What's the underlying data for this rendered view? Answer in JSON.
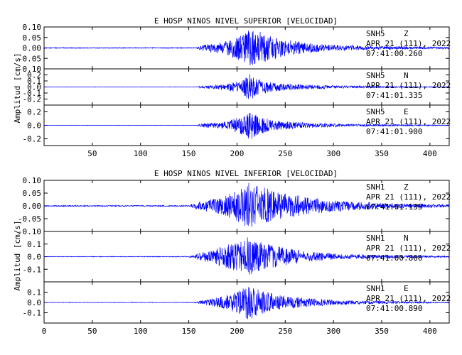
{
  "chart_data": [
    {
      "type": "line",
      "title": "E HOSP NINOS NIVEL SUPERIOR [VELOCIDAD]",
      "ylabel": "Amplitud [cm/s]",
      "xlim": [
        0,
        420
      ],
      "xticks": [
        "50",
        "100",
        "150",
        "200",
        "250",
        "300",
        "350",
        "400"
      ],
      "xtick_values": [
        50,
        100,
        150,
        200,
        250,
        300,
        350,
        400
      ],
      "panels": [
        {
          "station": "SNH5",
          "component": "Z",
          "date": "APR 21 (111), 2022",
          "time": "07:41:00.260",
          "ylim": [
            -0.1,
            0.1
          ],
          "yticks": [
            "0.10",
            "0.05",
            "0.00",
            "-0.05",
            "-0.10"
          ],
          "ytick_values": [
            0.1,
            0.05,
            0.0,
            -0.05,
            -0.1
          ],
          "envelope": [
            [
              0,
              0.002
            ],
            [
              158,
              0.002
            ],
            [
              165,
              0.015
            ],
            [
              185,
              0.03
            ],
            [
              200,
              0.055
            ],
            [
              213,
              0.09
            ],
            [
              225,
              0.075
            ],
            [
              245,
              0.045
            ],
            [
              270,
              0.025
            ],
            [
              300,
              0.015
            ],
            [
              340,
              0.009
            ],
            [
              420,
              0.004
            ]
          ]
        },
        {
          "station": "SNH5",
          "component": "N",
          "date": "APR 21 (111), 2022",
          "time": "07:41:01.335",
          "ylim": [
            -0.3,
            0.3
          ],
          "yticks": [
            "0.2",
            "0.1",
            "0.0",
            "-0.1",
            "-0.2"
          ],
          "ytick_values": [
            0.2,
            0.1,
            0.0,
            -0.1,
            -0.2
          ],
          "envelope": [
            [
              0,
              0.002
            ],
            [
              158,
              0.003
            ],
            [
              165,
              0.025
            ],
            [
              190,
              0.05
            ],
            [
              205,
              0.12
            ],
            [
              213,
              0.22
            ],
            [
              222,
              0.14
            ],
            [
              240,
              0.07
            ],
            [
              270,
              0.04
            ],
            [
              310,
              0.02
            ],
            [
              360,
              0.012
            ],
            [
              420,
              0.005
            ]
          ]
        },
        {
          "station": "SNH5",
          "component": "E",
          "date": "APR 21 (111), 2022",
          "time": "07:41:01.900",
          "ylim": [
            -0.3,
            0.3
          ],
          "yticks": [
            "0.2",
            "0.0",
            "-0.2"
          ],
          "ytick_values": [
            0.2,
            0.0,
            -0.2
          ],
          "envelope": [
            [
              0,
              0.002
            ],
            [
              158,
              0.003
            ],
            [
              165,
              0.03
            ],
            [
              190,
              0.06
            ],
            [
              205,
              0.14
            ],
            [
              213,
              0.23
            ],
            [
              222,
              0.15
            ],
            [
              240,
              0.07
            ],
            [
              270,
              0.04
            ],
            [
              310,
              0.02
            ],
            [
              360,
              0.012
            ],
            [
              420,
              0.005
            ]
          ]
        }
      ]
    },
    {
      "type": "line",
      "title": "E HOSP NINOS NIVEL INFERIOR [VELOCIDAD]",
      "ylabel": "Amplitud [cm/s]",
      "xlim": [
        0,
        420
      ],
      "xticks": [
        "0",
        "50",
        "100",
        "150",
        "200",
        "250",
        "300",
        "350",
        "400"
      ],
      "xtick_values": [
        0,
        50,
        100,
        150,
        200,
        250,
        300,
        350,
        400
      ],
      "panels": [
        {
          "station": "SNH1",
          "component": "Z",
          "date": "APR 21 (111), 2022",
          "time": "07:41:01.135",
          "ylim": [
            -0.1,
            0.1
          ],
          "yticks": [
            "0.10",
            "0.05",
            "0.00",
            "-0.05",
            "-0.10"
          ],
          "ytick_values": [
            0.1,
            0.05,
            0.0,
            -0.05,
            -0.1
          ],
          "envelope": [
            [
              0,
              0.002
            ],
            [
              150,
              0.002
            ],
            [
              160,
              0.015
            ],
            [
              185,
              0.035
            ],
            [
              200,
              0.06
            ],
            [
              212,
              0.09
            ],
            [
              230,
              0.07
            ],
            [
              250,
              0.05
            ],
            [
              280,
              0.03
            ],
            [
              310,
              0.02
            ],
            [
              350,
              0.012
            ],
            [
              420,
              0.005
            ]
          ]
        },
        {
          "station": "SNH1",
          "component": "N",
          "date": "APR 21 (111), 2022",
          "time": "07:41:00.800",
          "ylim": [
            -0.2,
            0.2
          ],
          "yticks": [
            "0.1",
            "0.0",
            "-0.1"
          ],
          "ytick_values": [
            0.1,
            0.0,
            -0.1
          ],
          "envelope": [
            [
              0,
              0.002
            ],
            [
              150,
              0.003
            ],
            [
              162,
              0.03
            ],
            [
              185,
              0.08
            ],
            [
              200,
              0.12
            ],
            [
              210,
              0.16
            ],
            [
              222,
              0.12
            ],
            [
              245,
              0.08
            ],
            [
              275,
              0.04
            ],
            [
              310,
              0.02
            ],
            [
              360,
              0.012
            ],
            [
              420,
              0.005
            ]
          ]
        },
        {
          "station": "SNH1",
          "component": "E",
          "date": "APR 21 (111), 2022",
          "time": "07:41:00.890",
          "ylim": [
            -0.2,
            0.2
          ],
          "yticks": [
            "0.1",
            "0.0",
            "-0.1"
          ],
          "ytick_values": [
            0.1,
            0.0,
            -0.1
          ],
          "envelope": [
            [
              0,
              0.002
            ],
            [
              155,
              0.003
            ],
            [
              165,
              0.02
            ],
            [
              190,
              0.07
            ],
            [
              205,
              0.13
            ],
            [
              212,
              0.17
            ],
            [
              225,
              0.12
            ],
            [
              245,
              0.07
            ],
            [
              275,
              0.04
            ],
            [
              310,
              0.02
            ],
            [
              360,
              0.012
            ],
            [
              420,
              0.005
            ]
          ]
        }
      ]
    }
  ],
  "colors": {
    "trace": "#0000ff",
    "axis": "#000000"
  }
}
